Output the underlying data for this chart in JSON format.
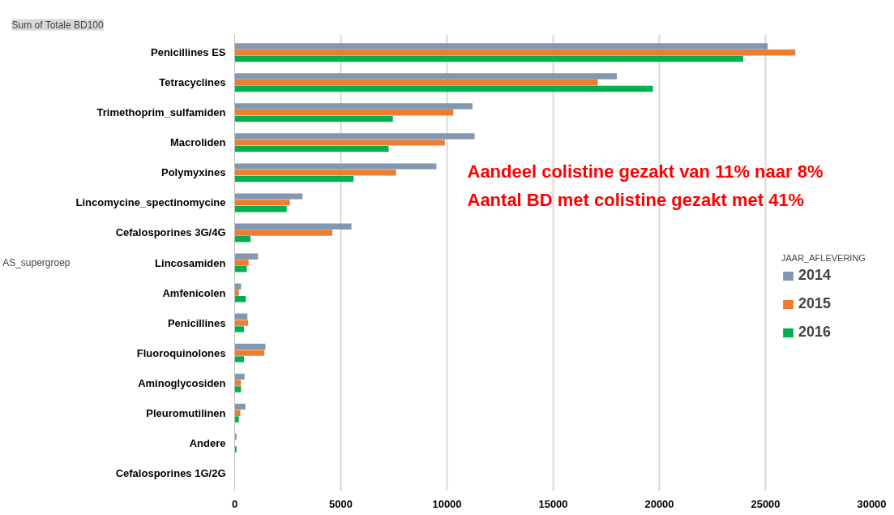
{
  "chart_data": {
    "type": "bar",
    "orientation": "horizontal",
    "title": "Sum of Totale BD100",
    "ylabel": "AS_supergroep",
    "legend_title": "JAAR_AFLEVERING",
    "categories": [
      "Penicillines ES",
      "Tetracyclines",
      "Trimethoprim_sulfamiden",
      "Macroliden",
      "Polymyxines",
      "Lincomycine_spectinomycine",
      "Cefalosporines 3G/4G",
      "Lincosamiden",
      "Amfenicolen",
      "Penicillines",
      "Fluoroquinolones",
      "Aminoglycosiden",
      "Pleuromutilinen",
      "Andere",
      "Cefalosporines 1G/2G"
    ],
    "series": [
      {
        "name": "2014",
        "color": "#8497b0",
        "values": [
          25100,
          18000,
          11200,
          11300,
          9500,
          3200,
          5500,
          1100,
          300,
          600,
          1450,
          470,
          510,
          90,
          null
        ]
      },
      {
        "name": "2015",
        "color": "#ed7d31",
        "values": [
          26400,
          17100,
          10300,
          9900,
          7600,
          2600,
          4600,
          660,
          200,
          630,
          1400,
          300,
          270,
          null,
          null
        ]
      },
      {
        "name": "2016",
        "color": "#00b050",
        "values": [
          23950,
          19700,
          7450,
          7250,
          5600,
          2450,
          750,
          570,
          530,
          440,
          440,
          300,
          200,
          90,
          null
        ]
      }
    ],
    "xlim": [
      0,
      30000
    ],
    "xticks": [
      0,
      5000,
      10000,
      15000,
      20000,
      25000,
      30000
    ],
    "grid": "x",
    "legend": "right",
    "annotations": [
      "Aandeel colistine gezakt van 11% naar 8%",
      "Aantal BD met colistine gezakt met 41%"
    ]
  }
}
